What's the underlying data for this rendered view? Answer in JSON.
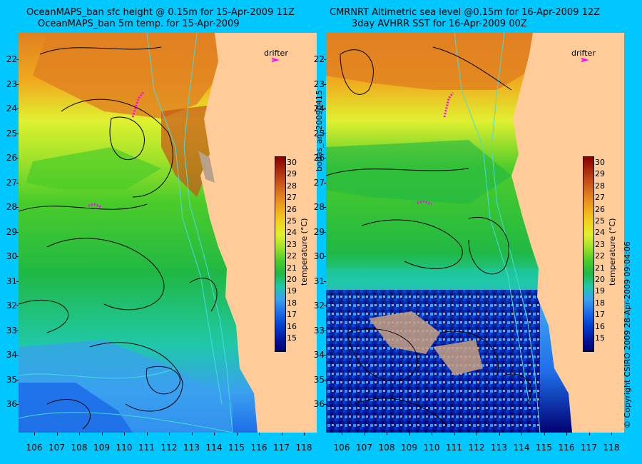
{
  "left": {
    "title1": "OceanMAPS_ban sfc height @ 0.15m for 15-Apr-2009 11Z",
    "title2": "OceanMAPS_ban 5m temp. for 15-Apr-2009"
  },
  "right": {
    "title1": "CMRNRT Altimetric sea level  @0.15m  for 16-Apr-2009 12Z",
    "title2": "3day AVHRR SST for 16-Apr-2009 00Z"
  },
  "drifter_label": "drifter",
  "vertical_label": "bodas_an_20090415",
  "copyright": "© Copyright CSIRO 2009   28-Apr-2009 09:04:06",
  "colorbar": {
    "label": "temperature (°C)",
    "ticks": [
      "15",
      "16",
      "17",
      "18",
      "19",
      "20",
      "21",
      "22",
      "23",
      "24",
      "25",
      "26",
      "27",
      "28",
      "29",
      "30"
    ],
    "colors": [
      "#000070",
      "#001aa0",
      "#0040d0",
      "#1e6ee8",
      "#3aa0f0",
      "#1fc8a8",
      "#20b844",
      "#4ccc2a",
      "#9ee22a",
      "#e0f030",
      "#f0d220",
      "#f0aa1e",
      "#e08020",
      "#c85418",
      "#a82a10",
      "#880000"
    ]
  },
  "axes": {
    "lat_ticks": [
      "22",
      "23",
      "24",
      "25",
      "26",
      "27",
      "28",
      "29",
      "30",
      "31",
      "32",
      "33",
      "34",
      "35",
      "36"
    ],
    "lon_ticks": [
      "106",
      "107",
      "108",
      "109",
      "110",
      "111",
      "112",
      "113",
      "114",
      "115",
      "116",
      "117",
      "118"
    ]
  },
  "colors": {
    "background": "#00c8ff",
    "land": "#ffcc99",
    "contour": "#000000",
    "bathymetry": "#44dddd",
    "drifter": "#ff00ff"
  }
}
